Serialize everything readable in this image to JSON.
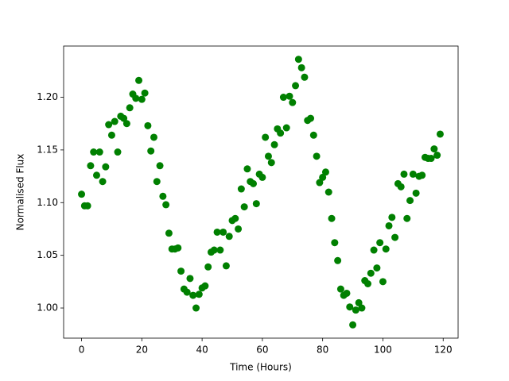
{
  "chart_data": {
    "type": "scatter",
    "xlabel": "Time (Hours)",
    "ylabel": "Normalised Flux",
    "color": "#008000",
    "x": [
      0,
      1,
      2,
      3,
      4,
      5,
      6,
      7,
      8,
      9,
      10,
      11,
      12,
      13,
      14,
      15,
      16,
      17,
      18,
      19,
      20,
      21,
      22,
      23,
      24,
      25,
      26,
      27,
      28,
      29,
      30,
      31,
      32,
      33,
      34,
      35,
      36,
      37,
      38,
      39,
      40,
      41,
      42,
      43,
      44,
      45,
      46,
      47,
      48,
      49,
      50,
      51,
      52,
      53,
      54,
      55,
      56,
      57,
      58,
      59,
      60,
      61,
      62,
      63,
      64,
      65,
      66,
      67,
      68,
      69,
      70,
      71,
      72,
      73,
      74,
      75,
      76,
      77,
      78,
      79,
      80,
      81,
      82,
      83,
      84,
      85,
      86,
      87,
      88,
      89,
      90,
      91,
      92,
      93,
      94,
      95,
      96,
      97,
      98,
      99,
      100,
      101,
      102,
      103,
      104,
      105,
      106,
      107,
      108,
      109,
      110,
      111,
      112,
      113,
      114,
      115,
      116,
      117,
      118,
      119
    ],
    "values": [
      1.108,
      1.097,
      1.097,
      1.135,
      1.148,
      1.126,
      1.148,
      1.12,
      1.134,
      1.174,
      1.164,
      1.177,
      1.148,
      1.182,
      1.18,
      1.175,
      1.19,
      1.203,
      1.199,
      1.216,
      1.198,
      1.204,
      1.173,
      1.149,
      1.162,
      1.12,
      1.135,
      1.106,
      1.098,
      1.071,
      1.056,
      1.056,
      1.057,
      1.035,
      1.018,
      1.015,
      1.028,
      1.012,
      1.0,
      1.013,
      1.019,
      1.021,
      1.039,
      1.053,
      1.055,
      1.072,
      1.055,
      1.072,
      1.04,
      1.068,
      1.083,
      1.085,
      1.075,
      1.113,
      1.096,
      1.132,
      1.12,
      1.118,
      1.099,
      1.127,
      1.124,
      1.162,
      1.144,
      1.138,
      1.155,
      1.17,
      1.166,
      1.2,
      1.171,
      1.201,
      1.195,
      1.211,
      1.236,
      1.228,
      1.219,
      1.178,
      1.18,
      1.164,
      1.144,
      1.119,
      1.124,
      1.129,
      1.11,
      1.085,
      1.062,
      1.045,
      1.018,
      1.012,
      1.014,
      1.001,
      0.984,
      0.998,
      1.005,
      1.0,
      1.026,
      1.023,
      1.033,
      1.055,
      1.038,
      1.062,
      1.025,
      1.056,
      1.078,
      1.086,
      1.067,
      1.118,
      1.115,
      1.127,
      1.085,
      1.102,
      1.127,
      1.109,
      1.125,
      1.126,
      1.143,
      1.142,
      1.142,
      1.151,
      1.145,
      1.165
    ],
    "xlim": [
      -5.95,
      124.95
    ],
    "ylim": [
      0.9714,
      1.2486
    ],
    "xticks": [
      0,
      20,
      40,
      60,
      80,
      100,
      120
    ],
    "yticks": [
      {
        "value": 1.0,
        "label": "1.00"
      },
      {
        "value": 1.05,
        "label": "1.05"
      },
      {
        "value": 1.1,
        "label": "1.10"
      },
      {
        "value": 1.15,
        "label": "1.15"
      },
      {
        "value": 1.2,
        "label": "1.20"
      }
    ]
  }
}
